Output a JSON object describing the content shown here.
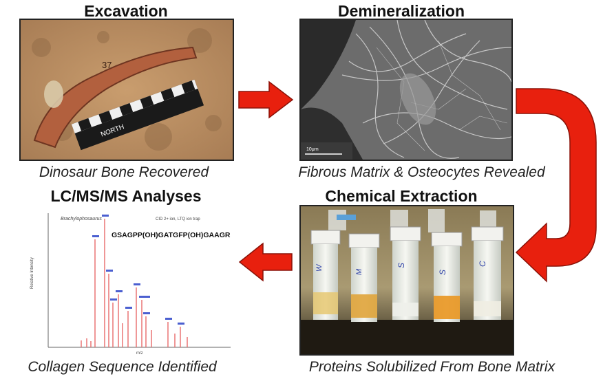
{
  "panels": {
    "excavation": {
      "title": "Excavation",
      "caption": "Dinosaur Bone Recovered",
      "bone_number": "37",
      "scale_label": "NORTH"
    },
    "demineralization": {
      "title": "Demineralization",
      "caption": "Fibrous Matrix & Osteocytes Revealed",
      "scale_bar_label": "10μm"
    },
    "extraction": {
      "title": "Chemical Extraction",
      "caption": "Proteins Solubilized From Bone Matrix",
      "tube_labels": [
        "W",
        "M",
        "S",
        "S",
        "C"
      ]
    },
    "lcms": {
      "title": "LC/MS/MS Analyses",
      "caption": "Collagen Sequence Identified",
      "species": "Brachylophosaurus",
      "method": "CID 2+ ion, LTQ ion trap",
      "sequence": "GSAGPP(OH)GATGFP(OH)GAAGR",
      "ylabel": "Relative Intensity",
      "xlabel": "m/z"
    }
  },
  "colors": {
    "arrow": "#e8200e",
    "arrow_outline": "#8a1208",
    "spectrum": "#e86a6a"
  }
}
